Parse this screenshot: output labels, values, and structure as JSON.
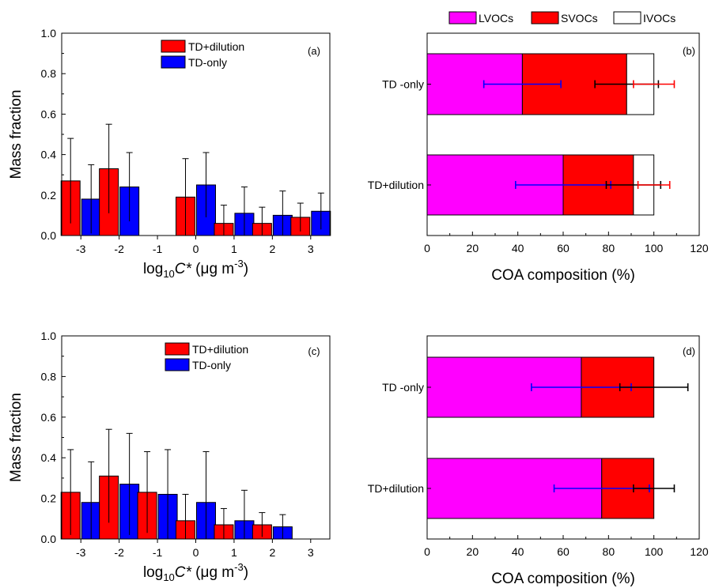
{
  "colors": {
    "td_dilution": "#ff0000",
    "td_only": "#0000ff",
    "lvoc": "#ff00ff",
    "svoc": "#ff0000",
    "ivoc": "#ffffff"
  },
  "legend_right": [
    "LVOCs",
    "SVOCs",
    "IVOCs"
  ],
  "chart_data": [
    {
      "panel": "(a)",
      "type": "bar",
      "ylabel": "Mass fraction",
      "xlabel_main": "log",
      "xlabel_sub": "10",
      "xlabel_var": "C*",
      "xlabel_unit": " (μg m",
      "xlabel_exp": "-3",
      "xlabel_close": ")",
      "ylim": [
        0,
        1.0
      ],
      "yticks": [
        "0.0",
        "0.2",
        "0.4",
        "0.6",
        "0.8",
        "1.0"
      ],
      "categories": [
        "-3",
        "-2",
        "-1",
        "0",
        "1",
        "2",
        "3"
      ],
      "series": [
        {
          "name": "TD+dilution",
          "values": [
            0.27,
            0.33,
            0,
            0.19,
            0.06,
            0.06,
            0.09
          ],
          "errors": [
            0.21,
            0.22,
            0,
            0.19,
            0.09,
            0.08,
            0.07
          ]
        },
        {
          "name": "TD-only",
          "values": [
            0.18,
            0.24,
            0,
            0.25,
            0.11,
            0.1,
            0.12
          ],
          "errors": [
            0.17,
            0.17,
            0,
            0.16,
            0.13,
            0.12,
            0.09
          ]
        }
      ]
    },
    {
      "panel": "(b)",
      "type": "bar",
      "orientation": "horizontal-stacked",
      "xlabel": "COA  composition (%)",
      "xlim": [
        0,
        120
      ],
      "xticks": [
        "0",
        "20",
        "40",
        "60",
        "80",
        "100",
        "120"
      ],
      "categories": [
        "TD -only",
        "TD+dilution"
      ],
      "series": [
        {
          "name": "LVOCs",
          "values": [
            42,
            60
          ]
        },
        {
          "name": "SVOCs",
          "values": [
            46,
            31
          ]
        },
        {
          "name": "IVOCs",
          "values": [
            12,
            9
          ]
        }
      ],
      "error_bars": [
        [
          {
            "center": 42,
            "err": 17,
            "color": "#0000ff"
          },
          {
            "center": 88,
            "err": 14,
            "color": "#000000"
          },
          {
            "center": 100,
            "err": 9,
            "color": "#ff0000"
          }
        ],
        [
          {
            "center": 60,
            "err": 21,
            "color": "#0000ff"
          },
          {
            "center": 91,
            "err": 12,
            "color": "#000000"
          },
          {
            "center": 100,
            "err": 7,
            "color": "#ff0000"
          }
        ]
      ]
    },
    {
      "panel": "(c)",
      "type": "bar",
      "ylabel": "Mass fraction",
      "xlabel_main": "log",
      "xlabel_sub": "10",
      "xlabel_var": "C*",
      "xlabel_unit": " (μg m",
      "xlabel_exp": "-3",
      "xlabel_close": ")",
      "ylim": [
        0,
        1.0
      ],
      "yticks": [
        "0.0",
        "0.2",
        "0.4",
        "0.6",
        "0.8",
        "1.0"
      ],
      "categories": [
        "-3",
        "-2",
        "-1",
        "0",
        "1",
        "2",
        "3"
      ],
      "series": [
        {
          "name": "TD+dilution",
          "values": [
            0.23,
            0.31,
            0.23,
            0.09,
            0.07,
            0.07,
            0
          ],
          "errors": [
            0.21,
            0.23,
            0.2,
            0.13,
            0.08,
            0.06,
            0
          ]
        },
        {
          "name": "TD-only",
          "values": [
            0.18,
            0.27,
            0.22,
            0.18,
            0.09,
            0.06,
            0
          ],
          "errors": [
            0.2,
            0.25,
            0.22,
            0.25,
            0.15,
            0.06,
            0
          ]
        }
      ]
    },
    {
      "panel": "(d)",
      "type": "bar",
      "orientation": "horizontal-stacked",
      "xlabel": "COA  composition (%)",
      "xlim": [
        0,
        120
      ],
      "xticks": [
        "0",
        "20",
        "40",
        "60",
        "80",
        "100",
        "120"
      ],
      "categories": [
        "TD -only",
        "TD+dilution"
      ],
      "series": [
        {
          "name": "LVOCs",
          "values": [
            68,
            77
          ]
        },
        {
          "name": "SVOCs",
          "values": [
            32,
            23
          ]
        }
      ],
      "error_bars": [
        [
          {
            "center": 68,
            "err": 22,
            "color": "#0000ff"
          },
          {
            "center": 100,
            "err": 15,
            "color": "#000000"
          }
        ],
        [
          {
            "center": 77,
            "err": 21,
            "color": "#0000ff"
          },
          {
            "center": 100,
            "err": 9,
            "color": "#000000"
          }
        ]
      ]
    }
  ]
}
